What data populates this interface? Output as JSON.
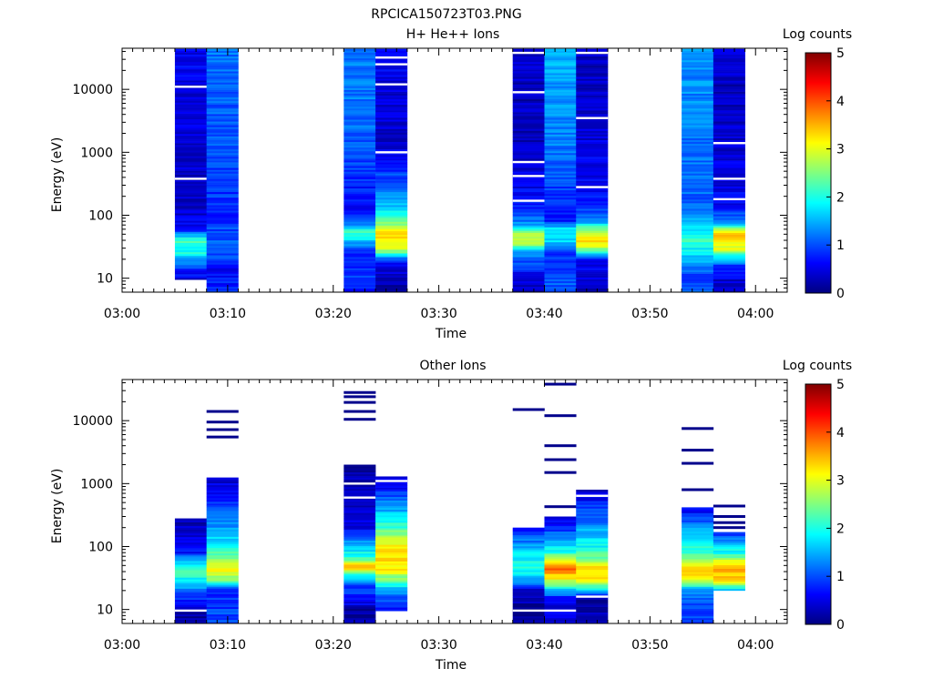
{
  "title": "RPCICA150723T03.PNG",
  "chart_data": [
    {
      "type": "heatmap",
      "title": "H+ He++ Ions",
      "xlabel": "Time",
      "ylabel": "Energy (eV)",
      "x_ticks": [
        "03:00",
        "03:10",
        "03:20",
        "03:30",
        "03:40",
        "03:50",
        "04:00"
      ],
      "xlim": [
        "03:00",
        "04:03"
      ],
      "y_scale": "log",
      "y_ticks": [
        "10",
        "100",
        "1000",
        "10000"
      ],
      "ylim": [
        6,
        45000
      ],
      "colorbar": {
        "label": "Log counts",
        "range": [
          0,
          5
        ],
        "ticks": [
          "0",
          "1",
          "2",
          "3",
          "4",
          "5"
        ]
      },
      "columns": [
        {
          "t_start": "03:05",
          "t_end": "03:08",
          "e_min": 9.5,
          "e_max": 44000,
          "profile": [
            [
              9.5,
              0.4
            ],
            [
              14,
              0.9
            ],
            [
              18,
              1.2
            ],
            [
              25,
              1.9
            ],
            [
              40,
              2.2
            ],
            [
              60,
              0.6
            ],
            [
              150,
              0.3
            ],
            [
              1000,
              0.4
            ],
            [
              10000,
              0.5
            ],
            [
              44000,
              0.6
            ]
          ],
          "gaps": [
            380,
            11000
          ]
        },
        {
          "t_start": "03:08",
          "t_end": "03:11",
          "e_min": 6,
          "e_max": 44000,
          "profile": [
            [
              6,
              0.9
            ],
            [
              15,
              0.5
            ],
            [
              20,
              0.9
            ],
            [
              40,
              1.1
            ],
            [
              100,
              0.8
            ],
            [
              1000,
              1.0
            ],
            [
              10000,
              1.1
            ],
            [
              44000,
              1.2
            ]
          ],
          "gaps": []
        },
        {
          "t_start": "03:21",
          "t_end": "03:24",
          "e_min": 6,
          "e_max": 44000,
          "profile": [
            [
              6,
              0.5
            ],
            [
              10,
              1.0
            ],
            [
              25,
              0.7
            ],
            [
              40,
              1.7
            ],
            [
              55,
              2.3
            ],
            [
              80,
              1.0
            ],
            [
              150,
              0.6
            ],
            [
              500,
              0.9
            ],
            [
              5000,
              1.2
            ],
            [
              44000,
              1.2
            ]
          ],
          "gaps": []
        },
        {
          "t_start": "03:24",
          "t_end": "03:27",
          "e_min": 6,
          "e_max": 44000,
          "profile": [
            [
              6,
              0.2
            ],
            [
              14,
              0.4
            ],
            [
              20,
              1.0
            ],
            [
              30,
              3.1
            ],
            [
              55,
              3.2
            ],
            [
              70,
              2.6
            ],
            [
              100,
              1.9
            ],
            [
              200,
              1.3
            ],
            [
              600,
              0.8
            ],
            [
              1500,
              0.4
            ],
            [
              10000,
              0.4
            ],
            [
              44000,
              0.7
            ]
          ],
          "gaps": [
            1000,
            12000,
            25000,
            32000
          ]
        },
        {
          "t_start": "03:37",
          "t_end": "03:40",
          "e_min": 6,
          "e_max": 44000,
          "profile": [
            [
              6,
              0.2
            ],
            [
              10,
              0.5
            ],
            [
              25,
              1.3
            ],
            [
              35,
              2.6
            ],
            [
              50,
              2.9
            ],
            [
              60,
              1.8
            ],
            [
              80,
              1.2
            ],
            [
              150,
              0.7
            ],
            [
              1000,
              0.3
            ],
            [
              10000,
              0.3
            ],
            [
              44000,
              0.4
            ]
          ],
          "gaps": [
            170,
            420,
            700,
            9000,
            38000
          ]
        },
        {
          "t_start": "03:40",
          "t_end": "03:43",
          "e_min": 6,
          "e_max": 44000,
          "profile": [
            [
              6,
              1.1
            ],
            [
              25,
              0.9
            ],
            [
              40,
              1.7
            ],
            [
              60,
              1.9
            ],
            [
              80,
              0.7
            ],
            [
              200,
              0.9
            ],
            [
              1000,
              1.2
            ],
            [
              10000,
              1.4
            ],
            [
              44000,
              1.5
            ]
          ],
          "gaps": []
        },
        {
          "t_start": "03:43",
          "t_end": "03:46",
          "e_min": 6,
          "e_max": 44000,
          "profile": [
            [
              6,
              0.3
            ],
            [
              20,
              0.6
            ],
            [
              30,
              2.7
            ],
            [
              40,
              3.3
            ],
            [
              55,
              2.8
            ],
            [
              75,
              1.6
            ],
            [
              100,
              1.0
            ],
            [
              300,
              0.6
            ],
            [
              3000,
              0.4
            ],
            [
              44000,
              0.3
            ]
          ],
          "gaps": [
            280,
            3500,
            38000
          ]
        },
        {
          "t_start": "03:53",
          "t_end": "03:56",
          "e_min": 6,
          "e_max": 44000,
          "profile": [
            [
              6,
              1.2
            ],
            [
              10,
              0.8
            ],
            [
              15,
              1.3
            ],
            [
              30,
              1.9
            ],
            [
              40,
              2.2
            ],
            [
              70,
              1.6
            ],
            [
              150,
              1.1
            ],
            [
              1000,
              1.2
            ],
            [
              10000,
              1.3
            ],
            [
              44000,
              1.3
            ]
          ],
          "gaps": []
        },
        {
          "t_start": "03:56",
          "t_end": "03:59",
          "e_min": 6,
          "e_max": 44000,
          "profile": [
            [
              6,
              0.2
            ],
            [
              15,
              0.7
            ],
            [
              30,
              3.0
            ],
            [
              50,
              3.3
            ],
            [
              65,
              2.2
            ],
            [
              80,
              1.3
            ],
            [
              150,
              0.6
            ],
            [
              1000,
              0.4
            ],
            [
              10000,
              0.3
            ],
            [
              44000,
              0.4
            ]
          ],
          "gaps": [
            180,
            380,
            1400
          ]
        }
      ]
    },
    {
      "type": "heatmap",
      "title": "Other Ions",
      "xlabel": "Time",
      "ylabel": "Energy (eV)",
      "x_ticks": [
        "03:00",
        "03:10",
        "03:20",
        "03:30",
        "03:40",
        "03:50",
        "04:00"
      ],
      "xlim": [
        "03:00",
        "04:03"
      ],
      "y_scale": "log",
      "y_ticks": [
        "10",
        "100",
        "1000",
        "10000"
      ],
      "ylim": [
        6,
        45000
      ],
      "colorbar": {
        "label": "Log counts",
        "range": [
          0,
          5
        ],
        "ticks": [
          "0",
          "1",
          "2",
          "3",
          "4",
          "5"
        ]
      },
      "columns": [
        {
          "t_start": "03:05",
          "t_end": "03:08",
          "e_min": 6,
          "e_max": 280,
          "profile": [
            [
              6,
              0.2
            ],
            [
              9.5,
              0.2
            ],
            [
              16,
              0.9
            ],
            [
              22,
              1.3
            ],
            [
              30,
              1.9
            ],
            [
              45,
              2.2
            ],
            [
              60,
              1.6
            ],
            [
              80,
              0.7
            ],
            [
              150,
              0.4
            ],
            [
              280,
              0.2
            ]
          ],
          "gaps": [
            9.6
          ]
        },
        {
          "t_start": "03:08",
          "t_end": "03:11",
          "e_min": 6,
          "e_max": 1250,
          "profile": [
            [
              6,
              1.0
            ],
            [
              20,
              0.8
            ],
            [
              30,
              2.6
            ],
            [
              45,
              3.1
            ],
            [
              65,
              2.6
            ],
            [
              100,
              1.8
            ],
            [
              200,
              1.4
            ],
            [
              500,
              0.9
            ],
            [
              1250,
              0.3
            ]
          ],
          "gaps": [],
          "lines": [
            5500,
            7200,
            9500,
            14000
          ]
        },
        {
          "t_start": "03:21",
          "t_end": "03:24",
          "e_min": 6,
          "e_max": 2000,
          "profile": [
            [
              6,
              0.1
            ],
            [
              10,
              0.2
            ],
            [
              15,
              0.8
            ],
            [
              25,
              1.0
            ],
            [
              35,
              2.0
            ],
            [
              50,
              3.7
            ],
            [
              65,
              2.2
            ],
            [
              100,
              1.6
            ],
            [
              200,
              0.5
            ],
            [
              600,
              0.3
            ],
            [
              2000,
              0.2
            ]
          ],
          "gaps": [
            600,
            1000
          ],
          "lines": [
            10500,
            14000,
            19500,
            24000,
            28000
          ]
        },
        {
          "t_start": "03:24",
          "t_end": "03:27",
          "e_min": 9.5,
          "e_max": 1300,
          "profile": [
            [
              9.5,
              0.6
            ],
            [
              20,
              1.4
            ],
            [
              30,
              2.4
            ],
            [
              45,
              3.2
            ],
            [
              100,
              3.3
            ],
            [
              200,
              2.2
            ],
            [
              500,
              1.2
            ],
            [
              1300,
              0.3
            ]
          ],
          "gaps": [
            1100
          ]
        },
        {
          "t_start": "03:37",
          "t_end": "03:40",
          "e_min": 6,
          "e_max": 200,
          "profile": [
            [
              6,
              0.2
            ],
            [
              9.5,
              0.1
            ],
            [
              20,
              0.3
            ],
            [
              30,
              1.5
            ],
            [
              45,
              2.1
            ],
            [
              80,
              1.7
            ],
            [
              150,
              1.0
            ],
            [
              200,
              0.6
            ]
          ],
          "gaps": [
            9.6
          ],
          "lines": [
            15000
          ]
        },
        {
          "t_start": "03:40",
          "t_end": "03:43",
          "e_min": 6,
          "e_max": 300,
          "profile": [
            [
              6,
              0.4
            ],
            [
              15,
              0.6
            ],
            [
              30,
              3.0
            ],
            [
              45,
              3.9
            ],
            [
              60,
              3.2
            ],
            [
              80,
              2.0
            ],
            [
              150,
              1.2
            ],
            [
              300,
              0.4
            ]
          ],
          "gaps": [
            9.6
          ],
          "lines": [
            430,
            1500,
            2400,
            4000,
            12000,
            38000
          ]
        },
        {
          "t_start": "03:43",
          "t_end": "03:46",
          "e_min": 6,
          "e_max": 800,
          "profile": [
            [
              6,
              0.3
            ],
            [
              15,
              0.2
            ],
            [
              20,
              1.6
            ],
            [
              30,
              3.2
            ],
            [
              45,
              3.3
            ],
            [
              60,
              2.6
            ],
            [
              100,
              1.9
            ],
            [
              300,
              1.1
            ],
            [
              800,
              0.4
            ]
          ],
          "gaps": [
            16,
            640
          ]
        },
        {
          "t_start": "03:53",
          "t_end": "03:56",
          "e_min": 6,
          "e_max": 420,
          "profile": [
            [
              6,
              0.9
            ],
            [
              20,
              1.2
            ],
            [
              30,
              3.1
            ],
            [
              45,
              3.5
            ],
            [
              60,
              2.6
            ],
            [
              100,
              2.0
            ],
            [
              200,
              1.4
            ],
            [
              420,
              0.5
            ]
          ],
          "gaps": [],
          "lines": [
            800,
            2100,
            3400,
            7500
          ]
        },
        {
          "t_start": "03:56",
          "t_end": "03:59",
          "e_min": 20,
          "e_max": 170,
          "profile": [
            [
              20,
              1.4
            ],
            [
              25,
              2.6
            ],
            [
              30,
              3.3
            ],
            [
              45,
              3.5
            ],
            [
              60,
              2.9
            ],
            [
              80,
              2.0
            ],
            [
              120,
              1.4
            ],
            [
              170,
              0.7
            ]
          ],
          "gaps": [],
          "lines": [
            200,
            240,
            300,
            440
          ]
        }
      ]
    }
  ]
}
